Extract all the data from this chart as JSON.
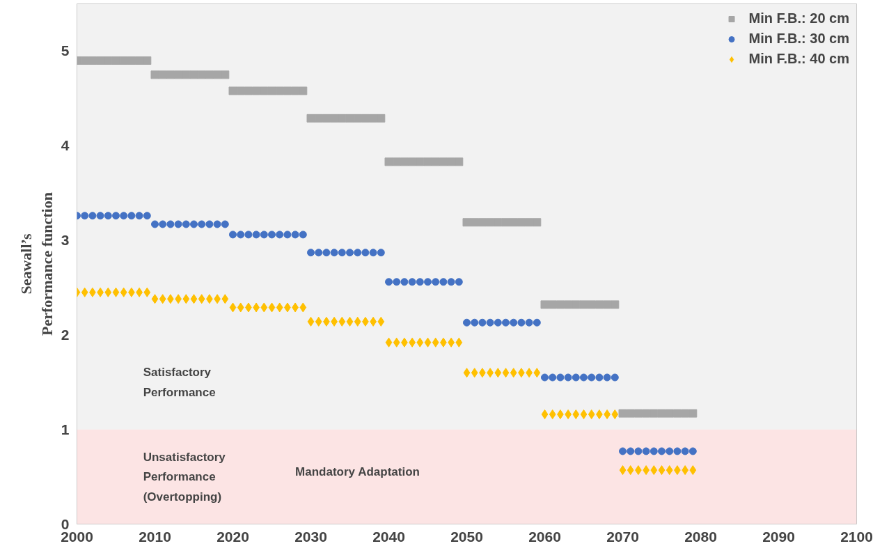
{
  "chart_data": {
    "type": "scatter",
    "ylabel": "Seawall’s\nPerformance function",
    "x": [
      2000,
      2001,
      2002,
      2003,
      2004,
      2005,
      2006,
      2007,
      2008,
      2009,
      2010,
      2011,
      2012,
      2013,
      2014,
      2015,
      2016,
      2017,
      2018,
      2019,
      2020,
      2021,
      2022,
      2023,
      2024,
      2025,
      2026,
      2027,
      2028,
      2029,
      2030,
      2031,
      2032,
      2033,
      2034,
      2035,
      2036,
      2037,
      2038,
      2039,
      2040,
      2041,
      2042,
      2043,
      2044,
      2045,
      2046,
      2047,
      2048,
      2049,
      2050,
      2051,
      2052,
      2053,
      2054,
      2055,
      2056,
      2057,
      2058,
      2059,
      2060,
      2061,
      2062,
      2063,
      2064,
      2065,
      2066,
      2067,
      2068,
      2069,
      2070,
      2071,
      2072,
      2073,
      2074,
      2075,
      2076,
      2077,
      2078,
      2079
    ],
    "series": [
      {
        "name": "Min F.B.: 20 cm",
        "color": "#a6a6a6",
        "marker": "square",
        "values": [
          4.9,
          4.9,
          4.9,
          4.9,
          4.9,
          4.9,
          4.9,
          4.9,
          4.9,
          4.9,
          4.75,
          4.75,
          4.75,
          4.75,
          4.75,
          4.75,
          4.75,
          4.75,
          4.75,
          4.75,
          4.58,
          4.58,
          4.58,
          4.58,
          4.58,
          4.58,
          4.58,
          4.58,
          4.58,
          4.58,
          4.29,
          4.29,
          4.29,
          4.29,
          4.29,
          4.29,
          4.29,
          4.29,
          4.29,
          4.29,
          3.83,
          3.83,
          3.83,
          3.83,
          3.83,
          3.83,
          3.83,
          3.83,
          3.83,
          3.83,
          3.19,
          3.19,
          3.19,
          3.19,
          3.19,
          3.19,
          3.19,
          3.19,
          3.19,
          3.19,
          2.32,
          2.32,
          2.32,
          2.32,
          2.32,
          2.32,
          2.32,
          2.32,
          2.32,
          2.32,
          1.17,
          1.17,
          1.17,
          1.17,
          1.17,
          1.17,
          1.17,
          1.17,
          1.17,
          1.17
        ]
      },
      {
        "name": "Min F.B.: 30 cm",
        "color": "#4472c4",
        "marker": "circle",
        "values": [
          3.26,
          3.26,
          3.26,
          3.26,
          3.26,
          3.26,
          3.26,
          3.26,
          3.26,
          3.26,
          3.17,
          3.17,
          3.17,
          3.17,
          3.17,
          3.17,
          3.17,
          3.17,
          3.17,
          3.17,
          3.06,
          3.06,
          3.06,
          3.06,
          3.06,
          3.06,
          3.06,
          3.06,
          3.06,
          3.06,
          2.87,
          2.87,
          2.87,
          2.87,
          2.87,
          2.87,
          2.87,
          2.87,
          2.87,
          2.87,
          2.56,
          2.56,
          2.56,
          2.56,
          2.56,
          2.56,
          2.56,
          2.56,
          2.56,
          2.56,
          2.13,
          2.13,
          2.13,
          2.13,
          2.13,
          2.13,
          2.13,
          2.13,
          2.13,
          2.13,
          1.55,
          1.55,
          1.55,
          1.55,
          1.55,
          1.55,
          1.55,
          1.55,
          1.55,
          1.55,
          0.77,
          0.77,
          0.77,
          0.77,
          0.77,
          0.77,
          0.77,
          0.77,
          0.77,
          0.77
        ]
      },
      {
        "name": "Min F.B.: 40 cm",
        "color": "#ffc000",
        "marker": "diamond",
        "values": [
          2.45,
          2.45,
          2.45,
          2.45,
          2.45,
          2.45,
          2.45,
          2.45,
          2.45,
          2.45,
          2.38,
          2.38,
          2.38,
          2.38,
          2.38,
          2.38,
          2.38,
          2.38,
          2.38,
          2.38,
          2.29,
          2.29,
          2.29,
          2.29,
          2.29,
          2.29,
          2.29,
          2.29,
          2.29,
          2.29,
          2.14,
          2.14,
          2.14,
          2.14,
          2.14,
          2.14,
          2.14,
          2.14,
          2.14,
          2.14,
          1.92,
          1.92,
          1.92,
          1.92,
          1.92,
          1.92,
          1.92,
          1.92,
          1.92,
          1.92,
          1.6,
          1.6,
          1.6,
          1.6,
          1.6,
          1.6,
          1.6,
          1.6,
          1.6,
          1.6,
          1.16,
          1.16,
          1.16,
          1.16,
          1.16,
          1.16,
          1.16,
          1.16,
          1.16,
          1.16,
          0.57,
          0.57,
          0.57,
          0.57,
          0.57,
          0.57,
          0.57,
          0.57,
          0.57,
          0.57
        ]
      }
    ],
    "bands": [
      {
        "axis": "y",
        "from": 1,
        "to": 5.5,
        "label": "Satisfactory\nPerformance",
        "color": "#f2f2f2"
      },
      {
        "axis": "y",
        "from": 0,
        "to": 1,
        "label": "Unsatisfactory\nPerformance\n(Overtopping)",
        "color": "#fce4e4"
      }
    ],
    "annotations": [
      "Mandatory Adaptation"
    ],
    "xlim": [
      2000,
      2100
    ],
    "xticks": [
      2000,
      2010,
      2020,
      2030,
      2040,
      2050,
      2060,
      2070,
      2080,
      2090,
      2100
    ],
    "ylim": [
      0,
      5.5
    ],
    "yticks": [
      0,
      1,
      2,
      3,
      4,
      5
    ],
    "grid": false,
    "legend": "top right"
  }
}
